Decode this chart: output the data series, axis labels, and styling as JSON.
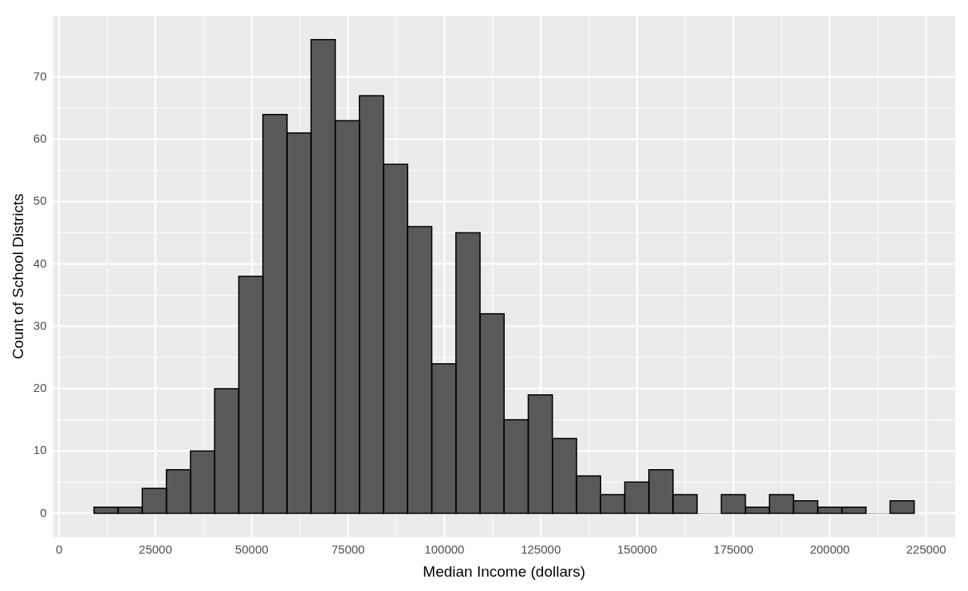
{
  "chart_data": {
    "type": "histogram",
    "xlabel": "Median Income (dollars)",
    "ylabel": "Count of School Districts",
    "bins": [
      9070,
      15330,
      21590,
      27850,
      34110,
      40370,
      46630,
      52890,
      59150,
      65410,
      71670,
      77930,
      84190,
      90450,
      96710,
      102970,
      109230,
      115490,
      121750,
      128010,
      134270,
      140530,
      146790,
      153050,
      159310,
      165570,
      171830,
      178090,
      184350,
      190610,
      196870,
      203130,
      209390,
      215650,
      221910
    ],
    "values": [
      1,
      1,
      4,
      7,
      10,
      20,
      38,
      64,
      61,
      76,
      63,
      67,
      56,
      46,
      24,
      45,
      32,
      15,
      19,
      12,
      6,
      3,
      5,
      7,
      3,
      0,
      3,
      1,
      3,
      2,
      1,
      1,
      0,
      2
    ],
    "color": "#595959",
    "xlim": [
      -1572,
      232552
    ],
    "xticks": [
      0,
      25000,
      50000,
      75000,
      100000,
      125000,
      150000,
      175000,
      200000,
      225000
    ],
    "ylim": [
      -3.8,
      79.8
    ],
    "yticks": [
      0,
      10,
      20,
      30,
      40,
      50,
      60,
      70
    ],
    "grid": true
  }
}
